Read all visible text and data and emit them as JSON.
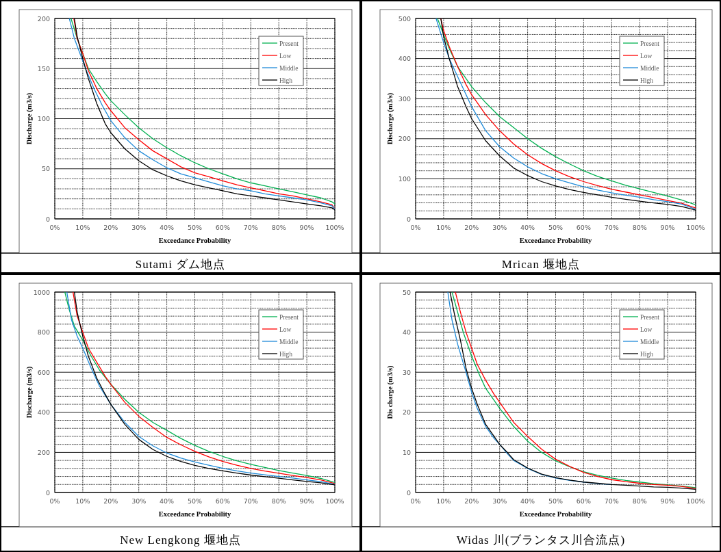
{
  "chart_data": [
    {
      "type": "line",
      "title": "Sutami ダム地点",
      "xlabel": "Exceedance  Probability",
      "ylabel": "Discharge (m3/s)",
      "xlim": [
        0,
        100
      ],
      "xticks": [
        {
          "value": 0,
          "label": "0%"
        },
        {
          "value": 10,
          "label": "10%"
        },
        {
          "value": 20,
          "label": "20%"
        },
        {
          "value": 30,
          "label": "30%"
        },
        {
          "value": 40,
          "label": "40%"
        },
        {
          "value": 50,
          "label": "50%"
        },
        {
          "value": 60,
          "label": "60%"
        },
        {
          "value": 70,
          "label": "70%"
        },
        {
          "value": 80,
          "label": "80%"
        },
        {
          "value": 90,
          "label": "90%"
        },
        {
          "value": 100,
          "label": "100%"
        }
      ],
      "ylim": [
        0,
        200
      ],
      "yticks": [
        0,
        50,
        100,
        150,
        200
      ],
      "grid": true,
      "legend": "top right",
      "marker": "none",
      "line_style": "solid",
      "series": [
        {
          "name": "Present",
          "color": "#00b050",
          "x": [
            5.8,
            8,
            10,
            12,
            15,
            18,
            20,
            25,
            30,
            35,
            40,
            45,
            50,
            55,
            60,
            65,
            70,
            75,
            80,
            85,
            90,
            95,
            99,
            100
          ],
          "values": [
            200,
            180,
            165,
            150,
            137,
            125,
            118,
            104,
            91,
            80,
            71,
            63,
            56,
            50,
            45,
            40,
            36,
            33,
            30,
            27,
            24,
            21,
            17,
            15
          ]
        },
        {
          "name": "Low",
          "color": "#ff0000",
          "x": [
            6.8,
            8,
            10,
            12,
            15,
            18,
            20,
            25,
            30,
            35,
            40,
            45,
            50,
            55,
            60,
            65,
            70,
            75,
            80,
            85,
            90,
            95,
            99,
            100
          ],
          "values": [
            200,
            180,
            165,
            148,
            130,
            116,
            108,
            91,
            79,
            68,
            60,
            52,
            46,
            42,
            38,
            34,
            31,
            28,
            25,
            23,
            20,
            17,
            14,
            10
          ]
        },
        {
          "name": "Middle",
          "color": "#1f8ad8",
          "x": [
            5.2,
            7,
            9,
            11,
            14,
            17,
            20,
            25,
            30,
            35,
            40,
            45,
            50,
            55,
            60,
            65,
            70,
            75,
            80,
            85,
            90,
            95,
            99,
            100
          ],
          "values": [
            200,
            180,
            165,
            150,
            130,
            113,
            98,
            81,
            68,
            59,
            51,
            45,
            41,
            37,
            33,
            30,
            28,
            25,
            23,
            21,
            19,
            16,
            13,
            10
          ]
        },
        {
          "name": "High",
          "color": "#000000",
          "x": [
            7,
            8,
            10,
            12,
            15,
            18,
            20,
            25,
            30,
            35,
            40,
            45,
            50,
            55,
            60,
            65,
            70,
            75,
            80,
            85,
            90,
            95,
            99,
            100
          ],
          "values": [
            200,
            182,
            160,
            140,
            115,
            95,
            86,
            70,
            58,
            49,
            43,
            38,
            34,
            31,
            28,
            25,
            23,
            21,
            19,
            17,
            15,
            13,
            11,
            9
          ]
        }
      ]
    },
    {
      "type": "line",
      "title": "Mrican 堰地点",
      "xlabel": "Exceedance  Probability",
      "ylabel": "Discharge (m3/s)",
      "xlim": [
        0,
        100
      ],
      "xticks": [
        {
          "value": 0,
          "label": "0%"
        },
        {
          "value": 10,
          "label": "10%"
        },
        {
          "value": 20,
          "label": "20%"
        },
        {
          "value": 30,
          "label": "30%"
        },
        {
          "value": 40,
          "label": "40%"
        },
        {
          "value": 50,
          "label": "50%"
        },
        {
          "value": 60,
          "label": "60%"
        },
        {
          "value": 70,
          "label": "70%"
        },
        {
          "value": 80,
          "label": "80%"
        },
        {
          "value": 90,
          "label": "90%"
        },
        {
          "value": 100,
          "label": "100%"
        }
      ],
      "ylim": [
        0,
        500
      ],
      "yticks": [
        0,
        100,
        200,
        300,
        400,
        500
      ],
      "grid": true,
      "legend": "top right",
      "marker": "none",
      "line_style": "solid",
      "series": [
        {
          "name": "Present",
          "color": "#00b050",
          "x": [
            7.8,
            10,
            12,
            15,
            18,
            20,
            25,
            30,
            35,
            40,
            45,
            50,
            55,
            60,
            65,
            70,
            75,
            80,
            85,
            90,
            95,
            100
          ],
          "values": [
            500,
            460,
            425,
            380,
            350,
            330,
            290,
            255,
            228,
            200,
            176,
            155,
            137,
            120,
            106,
            95,
            84,
            75,
            66,
            57,
            47,
            35
          ]
        },
        {
          "name": "Low",
          "color": "#ff0000",
          "x": [
            9,
            10,
            12,
            15,
            18,
            20,
            25,
            30,
            35,
            40,
            45,
            50,
            55,
            60,
            65,
            70,
            75,
            80,
            85,
            90,
            95,
            100
          ],
          "values": [
            500,
            470,
            430,
            380,
            335,
            310,
            260,
            220,
            187,
            160,
            138,
            120,
            105,
            93,
            83,
            74,
            67,
            60,
            53,
            46,
            39,
            27
          ]
        },
        {
          "name": "Middle",
          "color": "#1f8ad8",
          "x": [
            7.3,
            10,
            12,
            15,
            18,
            20,
            25,
            30,
            35,
            40,
            45,
            50,
            55,
            60,
            65,
            70,
            75,
            80,
            85,
            90,
            95,
            100
          ],
          "values": [
            500,
            440,
            400,
            355,
            310,
            280,
            220,
            180,
            152,
            130,
            113,
            100,
            90,
            80,
            72,
            65,
            59,
            54,
            48,
            43,
            37,
            24
          ]
        },
        {
          "name": "High",
          "color": "#000000",
          "x": [
            9,
            10,
            12,
            15,
            18,
            20,
            25,
            30,
            35,
            40,
            45,
            50,
            55,
            60,
            65,
            70,
            75,
            80,
            85,
            90,
            95,
            100
          ],
          "values": [
            500,
            455,
            400,
            330,
            280,
            250,
            195,
            157,
            127,
            108,
            93,
            82,
            73,
            66,
            60,
            54,
            49,
            44,
            40,
            36,
            31,
            22
          ]
        }
      ]
    },
    {
      "type": "line",
      "title": "New Lengkong 堰地点",
      "xlabel": "Exceedance  Probability",
      "ylabel": "Discharge (m3/s)",
      "xlim": [
        0,
        100
      ],
      "xticks": [
        {
          "value": 0,
          "label": "0%"
        },
        {
          "value": 10,
          "label": "10%"
        },
        {
          "value": 20,
          "label": "20%"
        },
        {
          "value": 30,
          "label": "30%"
        },
        {
          "value": 40,
          "label": "40%"
        },
        {
          "value": 50,
          "label": "50%"
        },
        {
          "value": 60,
          "label": "60%"
        },
        {
          "value": 70,
          "label": "70%"
        },
        {
          "value": 80,
          "label": "80%"
        },
        {
          "value": 90,
          "label": "90%"
        },
        {
          "value": 100,
          "label": "100%"
        }
      ],
      "ylim": [
        0,
        1000
      ],
      "yticks": [
        0,
        200,
        400,
        600,
        800,
        1000
      ],
      "grid": true,
      "legend": "top right",
      "marker": "none",
      "line_style": "solid",
      "series": [
        {
          "name": "Present",
          "color": "#00b050",
          "x": [
            3.6,
            5,
            7,
            10,
            13,
            16,
            20,
            25,
            30,
            35,
            40,
            45,
            50,
            55,
            60,
            65,
            70,
            75,
            80,
            85,
            90,
            95,
            100
          ],
          "values": [
            1000,
            920,
            830,
            760,
            680,
            610,
            540,
            465,
            400,
            350,
            310,
            270,
            235,
            205,
            180,
            158,
            140,
            125,
            110,
            97,
            85,
            70,
            50
          ]
        },
        {
          "name": "Low",
          "color": "#ff0000",
          "x": [
            6.5,
            8,
            10,
            12,
            15,
            18,
            20,
            25,
            30,
            35,
            40,
            45,
            50,
            55,
            60,
            65,
            70,
            75,
            80,
            85,
            90,
            95,
            100
          ],
          "values": [
            1000,
            880,
            800,
            720,
            650,
            580,
            540,
            450,
            380,
            325,
            275,
            238,
            205,
            178,
            155,
            136,
            120,
            107,
            96,
            85,
            75,
            63,
            45
          ]
        },
        {
          "name": "Middle",
          "color": "#1f8ad8",
          "x": [
            4.3,
            6,
            8,
            10,
            13,
            16,
            20,
            25,
            30,
            35,
            40,
            45,
            50,
            55,
            60,
            65,
            70,
            75,
            80,
            85,
            90,
            95,
            100
          ],
          "values": [
            1000,
            860,
            780,
            720,
            620,
            530,
            440,
            350,
            280,
            233,
            197,
            172,
            152,
            136,
            121,
            108,
            97,
            88,
            80,
            72,
            63,
            54,
            40
          ]
        },
        {
          "name": "High",
          "color": "#000000",
          "x": [
            7,
            8,
            10,
            12,
            15,
            18,
            20,
            25,
            30,
            35,
            40,
            45,
            50,
            55,
            60,
            65,
            70,
            75,
            80,
            85,
            90,
            95,
            100
          ],
          "values": [
            1000,
            900,
            780,
            680,
            570,
            490,
            440,
            340,
            265,
            215,
            180,
            155,
            135,
            120,
            108,
            97,
            87,
            79,
            71,
            63,
            55,
            48,
            38
          ]
        }
      ]
    },
    {
      "type": "line",
      "title": "Widas 川(ブランタス川合流点)",
      "xlabel": "Exceedance  Probability",
      "ylabel": "Dis charge (m3/s)",
      "xlim": [
        0,
        100
      ],
      "xticks": [
        {
          "value": 0,
          "label": "0%"
        },
        {
          "value": 10,
          "label": "10%"
        },
        {
          "value": 20,
          "label": "20%"
        },
        {
          "value": 30,
          "label": "30%"
        },
        {
          "value": 40,
          "label": "40%"
        },
        {
          "value": 50,
          "label": "50%"
        },
        {
          "value": 60,
          "label": "60%"
        },
        {
          "value": 70,
          "label": "70%"
        },
        {
          "value": 80,
          "label": "80%"
        },
        {
          "value": 90,
          "label": "90%"
        },
        {
          "value": 100,
          "label": "100%"
        }
      ],
      "ylim": [
        0,
        50
      ],
      "yticks": [
        0,
        10,
        20,
        30,
        40,
        50
      ],
      "grid": true,
      "legend": "top right",
      "marker": "none",
      "line_style": "solid",
      "series": [
        {
          "name": "Present",
          "color": "#00b050",
          "x": [
            13,
            15,
            17,
            20,
            23,
            25,
            28,
            30,
            35,
            40,
            45,
            50,
            55,
            60,
            65,
            70,
            75,
            80,
            85,
            90,
            95,
            100
          ],
          "values": [
            50,
            45,
            40,
            34,
            29,
            26,
            23,
            21,
            16.5,
            12.8,
            10,
            7.9,
            6.4,
            5.2,
            4.3,
            3.6,
            3,
            2.6,
            2.2,
            1.9,
            1.6,
            1.2
          ]
        },
        {
          "name": "Low",
          "color": "#ff0000",
          "x": [
            14.2,
            16,
            18,
            20,
            22,
            25,
            28,
            30,
            35,
            40,
            45,
            50,
            55,
            60,
            65,
            70,
            75,
            80,
            85,
            90,
            95,
            100
          ],
          "values": [
            50,
            45,
            40,
            36,
            32,
            28,
            24.5,
            22.5,
            17.5,
            14,
            10.8,
            8.3,
            6.5,
            5,
            4,
            3.2,
            2.7,
            2.3,
            2,
            1.8,
            1.5,
            1
          ]
        },
        {
          "name": "Middle",
          "color": "#1f8ad8",
          "x": [
            11.5,
            13,
            15,
            18,
            20,
            22,
            25,
            28,
            30,
            33,
            35,
            40,
            45,
            50,
            55,
            60,
            65,
            70
          ],
          "values": [
            50,
            43,
            37,
            30,
            25,
            21,
            16.5,
            13.5,
            12,
            9.5,
            8,
            6,
            4.5,
            3.6,
            3,
            2.6,
            2.2,
            2
          ]
        },
        {
          "name": "High",
          "color": "#000000",
          "x": [
            12.3,
            14,
            16,
            18,
            20,
            22,
            25,
            28,
            30,
            33,
            35,
            40,
            45,
            50,
            55,
            60,
            65,
            70,
            75,
            80,
            85,
            90,
            95,
            100
          ],
          "values": [
            50,
            44,
            38,
            31,
            26,
            22,
            17,
            14,
            12,
            9.8,
            8.2,
            6.1,
            4.6,
            3.7,
            3.1,
            2.6,
            2.3,
            2,
            1.8,
            1.6,
            1.4,
            1.3,
            1.1,
            0.8
          ]
        }
      ]
    }
  ]
}
